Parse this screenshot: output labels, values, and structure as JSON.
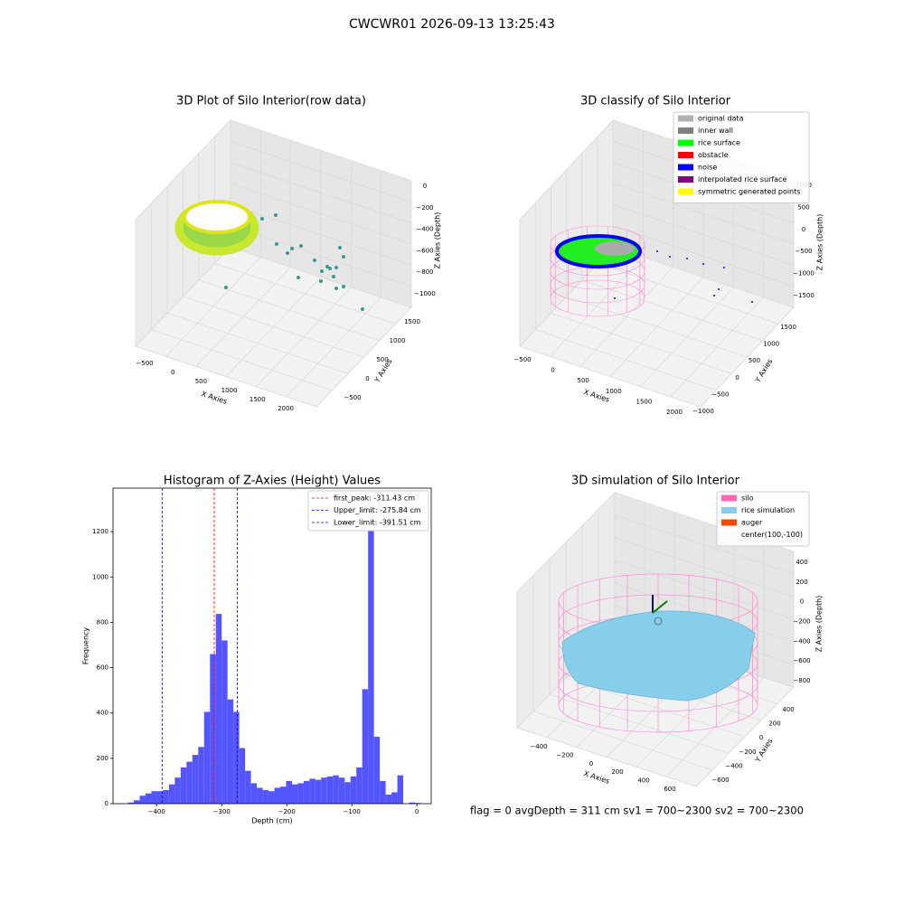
{
  "title": "CWCWR01 2026-09-13 13:25:43",
  "footer": "flag = 0    avgDepth = 311 cm  sv1 = 700~2300  sv2 = 700~2300",
  "chart_data": [
    {
      "type": "scatter3d",
      "title": "3D Plot of Silo Interior(row data)",
      "xlabel": "X Axies",
      "ylabel": "Y Axies",
      "zlabel": "Z Axies (Depth)",
      "xticks": [
        {
          "value": -500,
          "label": "−500"
        },
        0,
        500,
        1000,
        1500,
        2000
      ],
      "yticks": [
        {
          "value": -500,
          "label": "−500"
        },
        0,
        500,
        1000,
        1500
      ],
      "zticks": [
        0,
        {
          "value": -200,
          "label": "−200"
        },
        {
          "value": -400,
          "label": "−400"
        },
        {
          "value": -600,
          "label": "−600"
        },
        {
          "value": -800,
          "label": "−800"
        },
        {
          "value": -1000,
          "label": "−1000"
        }
      ]
    },
    {
      "type": "histogram",
      "title": "Histogram of Z-Axies (Height) Values",
      "xlabel": "Depth (cm)",
      "ylabel": "Frequency",
      "color": "#4c4cff",
      "bins": [
        -444,
        -435,
        -426,
        -417,
        -408,
        -399,
        -390,
        -381,
        -372,
        -363,
        -354,
        -345,
        -336,
        -327,
        -318,
        -309,
        -300,
        -291,
        -282,
        -273,
        -264,
        -255,
        -246,
        -237,
        -228,
        -219,
        -210,
        -201,
        -192,
        -183,
        -174,
        -165,
        -156,
        -147,
        -138,
        -129,
        -120,
        -111,
        -102,
        -93,
        -84,
        -75,
        -66,
        -57,
        -48,
        -39,
        -30,
        -21,
        -12,
        -3,
        6
      ],
      "values": [
        5,
        15,
        35,
        45,
        55,
        55,
        60,
        85,
        115,
        160,
        185,
        215,
        250,
        405,
        660,
        837,
        720,
        460,
        405,
        245,
        145,
        90,
        70,
        60,
        55,
        70,
        75,
        100,
        85,
        90,
        100,
        110,
        105,
        115,
        120,
        125,
        115,
        95,
        120,
        160,
        505,
        1310,
        295,
        100,
        40,
        50,
        125,
        0,
        5,
        3
      ],
      "xlim": [
        -467,
        22
      ],
      "ylim": [
        0,
        1392
      ],
      "xticks": [
        {
          "value": -400,
          "label": "−400"
        },
        {
          "value": -300,
          "label": "−300"
        },
        {
          "value": -200,
          "label": "−200"
        },
        {
          "value": -100,
          "label": "−100"
        },
        0
      ],
      "yticks": [
        0,
        200,
        400,
        600,
        800,
        1000,
        1200
      ],
      "lines": [
        {
          "value": -311.43,
          "label": "first_peak: -311.43 cm",
          "color": "#ff0000"
        },
        {
          "value": -275.84,
          "label": "Upper_limit: -275.84 cm",
          "color": "#0000ff"
        },
        {
          "value": -391.51,
          "label": "Lower_limit: -391.51 cm",
          "color": "#0000ff"
        }
      ]
    },
    {
      "type": "scatter3d",
      "title": "3D classify of Silo Interior",
      "xlabel": "X Axies",
      "ylabel": "Y Axies",
      "zlabel": "Z Axies (Depth)",
      "xticks": [
        {
          "value": -500,
          "label": "−500"
        },
        0,
        500,
        1000,
        1500,
        2000
      ],
      "yticks": [
        {
          "value": -1000,
          "label": "−1000"
        },
        {
          "value": -500,
          "label": "−500"
        },
        0,
        500,
        1000,
        1500
      ],
      "zticks": [
        1000,
        500,
        0,
        {
          "value": -500,
          "label": "−500"
        },
        {
          "value": -1000,
          "label": "−1000"
        },
        {
          "value": -1500,
          "label": "−1500"
        }
      ],
      "legend": [
        {
          "name": "original data",
          "color": "#b0b0b0"
        },
        {
          "name": "inner wall",
          "color": "#808080"
        },
        {
          "name": "rice surface",
          "color": "#00ff00"
        },
        {
          "name": "obstacle",
          "color": "#ff0000"
        },
        {
          "name": "noise",
          "color": "#0000ff"
        },
        {
          "name": "interpolated rice surface",
          "color": "#800080"
        },
        {
          "name": "symmetric generated points",
          "color": "#ffff00"
        }
      ]
    },
    {
      "type": "surface3d",
      "title": "3D simulation of Silo Interior",
      "xlabel": "X Axies",
      "ylabel": "Y Axies",
      "zlabel": "Z Axies (Depth)",
      "xticks": [
        {
          "value": -400,
          "label": "−400"
        },
        {
          "value": -200,
          "label": "−200"
        },
        0,
        200,
        400,
        600
      ],
      "yticks": [
        {
          "value": -600,
          "label": "−600"
        },
        {
          "value": -400,
          "label": "−400"
        },
        {
          "value": -200,
          "label": "−200"
        },
        0,
        200,
        400
      ],
      "zticks": [
        400,
        200,
        0,
        {
          "value": -200,
          "label": "−200"
        },
        {
          "value": -400,
          "label": "−400"
        },
        {
          "value": -600,
          "label": "−600"
        },
        {
          "value": -800,
          "label": "−800"
        }
      ],
      "legend": [
        {
          "name": "silo",
          "color": "#ff69b4"
        },
        {
          "name": "rice simulation",
          "color": "#87ceeb"
        },
        {
          "name": "auger",
          "color": "#ff4500"
        },
        {
          "name": "center(100,-100)"
        }
      ]
    }
  ]
}
